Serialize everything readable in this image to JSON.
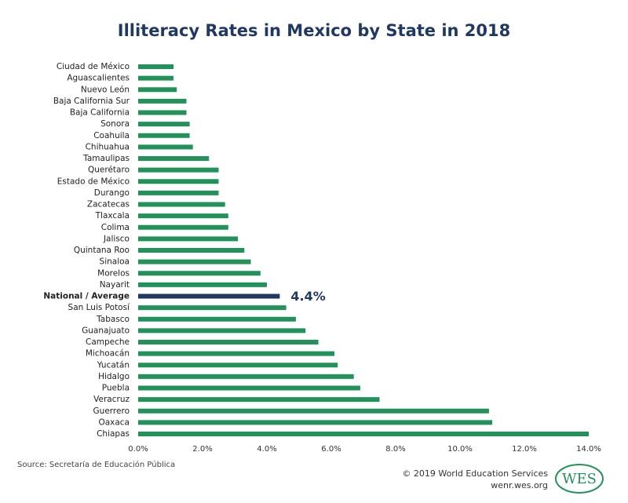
{
  "chart_data": {
    "type": "hbar",
    "title": "Illiteracy Rates in Mexico by State in 2018",
    "categories": [
      "Ciudad de México",
      "Aguascalientes",
      "Nuevo León",
      "Baja California Sur",
      "Baja California",
      "Sonora",
      "Coahuila",
      "Chihuahua",
      "Tamaulipas",
      "Querétaro",
      "Estado de México",
      "Durango",
      "Zacatecas",
      "Tlaxcala",
      "Colima",
      "Jalisco",
      "Quintana Roo",
      "Sinaloa",
      "Morelos",
      "Nayarit",
      "National / Average",
      "San Luis Potosí",
      "Tabasco",
      "Guanajuato",
      "Campeche",
      "Michoacán",
      "Yucatán",
      "Hidalgo",
      "Puebla",
      "Veracruz",
      "Guerrero",
      "Oaxaca",
      "Chiapas"
    ],
    "values": [
      1.1,
      1.1,
      1.2,
      1.5,
      1.5,
      1.6,
      1.6,
      1.7,
      2.2,
      2.5,
      2.5,
      2.5,
      2.7,
      2.8,
      2.8,
      3.1,
      3.3,
      3.5,
      3.8,
      4.0,
      4.4,
      4.6,
      4.9,
      5.2,
      5.6,
      6.1,
      6.2,
      6.7,
      6.9,
      7.5,
      10.9,
      11.0,
      14.0
    ],
    "value_labels": [
      null,
      null,
      null,
      null,
      null,
      null,
      null,
      null,
      null,
      null,
      null,
      null,
      null,
      null,
      null,
      null,
      null,
      null,
      null,
      null,
      "4.4%",
      null,
      null,
      null,
      null,
      null,
      null,
      null,
      null,
      null,
      null,
      null,
      null
    ],
    "colors": [
      "#23915a",
      "#23915a",
      "#23915a",
      "#23915a",
      "#23915a",
      "#23915a",
      "#23915a",
      "#23915a",
      "#23915a",
      "#23915a",
      "#23915a",
      "#23915a",
      "#23915a",
      "#23915a",
      "#23915a",
      "#23915a",
      "#23915a",
      "#23915a",
      "#23915a",
      "#23915a",
      "#1f3864",
      "#23915a",
      "#23915a",
      "#23915a",
      "#23915a",
      "#23915a",
      "#23915a",
      "#23915a",
      "#23915a",
      "#23915a",
      "#23915a",
      "#23915a",
      "#23915a"
    ],
    "xlim": [
      0,
      14
    ],
    "xticks": [
      {
        "value": 0,
        "label": "0.0%"
      },
      {
        "value": 2,
        "label": "2.0%"
      },
      {
        "value": 4,
        "label": "4.0%"
      },
      {
        "value": 6,
        "label": "6.0%"
      },
      {
        "value": 8,
        "label": "8.0%"
      },
      {
        "value": 10,
        "label": "10.0%"
      },
      {
        "value": 12,
        "label": "12.0%"
      },
      {
        "value": 14,
        "label": "14.0%"
      }
    ],
    "grid": false,
    "source": "Source: Secretaría de Educación Pública"
  },
  "footer": {
    "copyright": "© 2019 World Education Services",
    "website": "wenr.wes.org",
    "logo": "WES"
  }
}
